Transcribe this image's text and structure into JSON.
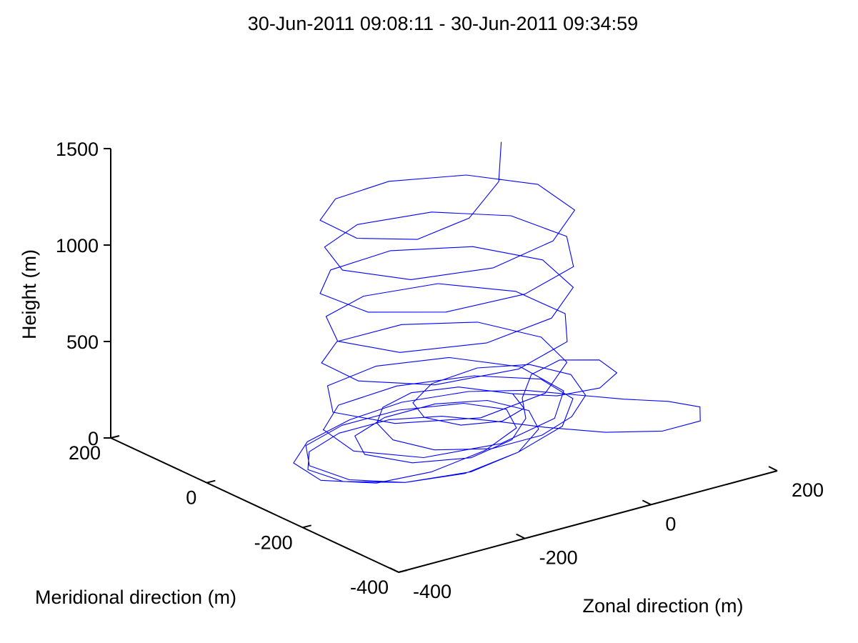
{
  "chart_data": {
    "type": "line3d",
    "title": "30-Jun-2011 09:08:11 - 30-Jun-2011 09:34:59",
    "xlabel": "Zonal direction (m)",
    "ylabel": "Meridional direction (m)",
    "zlabel": "Height (m)",
    "xlim": [
      -400,
      200
    ],
    "ylim": [
      -400,
      200
    ],
    "zlim": [
      0,
      1500
    ],
    "x_ticks": [
      "-400",
      "-200",
      "0",
      "200"
    ],
    "y_ticks": [
      "-400",
      "-200",
      "0",
      "200"
    ],
    "z_ticks": [
      "0",
      "500",
      "1000",
      "1500"
    ],
    "grid": false,
    "series_color": "#0000ff",
    "series": [
      {
        "description": "spiral descent path",
        "points": [
          [
            120,
            70,
            1230
          ],
          [
            40,
            -30,
            1210
          ],
          [
            -60,
            -100,
            1190
          ],
          [
            -150,
            -110,
            1170
          ],
          [
            -200,
            -50,
            1150
          ],
          [
            -190,
            40,
            1130
          ],
          [
            -120,
            100,
            1110
          ],
          [
            -20,
            120,
            1090
          ],
          [
            80,
            90,
            1070
          ],
          [
            140,
            20,
            1050
          ],
          [
            130,
            -70,
            1030
          ],
          [
            50,
            -130,
            1010
          ],
          [
            -60,
            -150,
            990
          ],
          [
            -160,
            -110,
            970
          ],
          [
            -200,
            -20,
            950
          ],
          [
            -160,
            70,
            930
          ],
          [
            -70,
            120,
            910
          ],
          [
            40,
            110,
            890
          ],
          [
            120,
            50,
            870
          ],
          [
            140,
            -40,
            850
          ],
          [
            90,
            -120,
            830
          ],
          [
            -10,
            -150,
            810
          ],
          [
            -120,
            -130,
            790
          ],
          [
            -190,
            -60,
            770
          ],
          [
            -190,
            40,
            750
          ],
          [
            -120,
            110,
            730
          ],
          [
            -10,
            130,
            710
          ],
          [
            90,
            90,
            690
          ],
          [
            140,
            10,
            670
          ],
          [
            120,
            -80,
            650
          ],
          [
            40,
            -140,
            630
          ],
          [
            -70,
            -150,
            610
          ],
          [
            -170,
            -100,
            590
          ],
          [
            -200,
            -10,
            570
          ],
          [
            -150,
            80,
            550
          ],
          [
            -60,
            120,
            530
          ],
          [
            50,
            110,
            510
          ],
          [
            120,
            40,
            490
          ],
          [
            130,
            -50,
            470
          ],
          [
            80,
            -120,
            450
          ],
          [
            -20,
            -150,
            430
          ],
          [
            -130,
            -120,
            410
          ],
          [
            -190,
            -40,
            390
          ],
          [
            -180,
            50,
            370
          ],
          [
            -110,
            110,
            350
          ],
          [
            0,
            120,
            330
          ],
          [
            90,
            80,
            310
          ],
          [
            130,
            0,
            290
          ],
          [
            110,
            -80,
            270
          ],
          [
            30,
            -140,
            250
          ],
          [
            -80,
            -150,
            230
          ],
          [
            -170,
            -90,
            210
          ],
          [
            -200,
            0,
            190
          ],
          [
            -140,
            90,
            170
          ],
          [
            -40,
            120,
            150
          ],
          [
            60,
            100,
            130
          ],
          [
            120,
            30,
            110
          ],
          [
            120,
            -60,
            90
          ],
          [
            60,
            -120,
            70
          ],
          [
            -40,
            -140,
            50
          ],
          [
            -140,
            -110,
            30
          ],
          [
            -190,
            -30,
            15
          ],
          [
            -170,
            60,
            5
          ]
        ]
      },
      {
        "description": "low-level loops near ground",
        "points": [
          [
            -170,
            60,
            0
          ],
          [
            -100,
            120,
            0
          ],
          [
            0,
            130,
            0
          ],
          [
            100,
            100,
            0
          ],
          [
            160,
            40,
            0
          ],
          [
            150,
            -40,
            0
          ],
          [
            80,
            -110,
            0
          ],
          [
            -20,
            -150,
            0
          ],
          [
            -120,
            -170,
            0
          ],
          [
            -200,
            -150,
            0
          ],
          [
            -250,
            -100,
            0
          ],
          [
            -260,
            -30,
            0
          ],
          [
            -220,
            30,
            0
          ],
          [
            -140,
            60,
            0
          ],
          [
            -50,
            60,
            0
          ],
          [
            30,
            30,
            0
          ],
          [
            60,
            -20,
            0
          ],
          [
            30,
            -80,
            0
          ],
          [
            -50,
            -120,
            0
          ],
          [
            -150,
            -140,
            0
          ],
          [
            -230,
            -130,
            0
          ],
          [
            -280,
            -80,
            0
          ],
          [
            -270,
            -10,
            0
          ],
          [
            -210,
            40,
            0
          ],
          [
            -120,
            70,
            0
          ],
          [
            -30,
            80,
            0
          ],
          [
            60,
            60,
            0
          ],
          [
            120,
            20,
            0
          ],
          [
            160,
            -30,
            0
          ],
          [
            200,
            -80,
            0
          ],
          [
            240,
            -120,
            0
          ],
          [
            260,
            -160,
            0
          ],
          [
            230,
            -200,
            0
          ],
          [
            170,
            -200,
            0
          ],
          [
            110,
            -160,
            0
          ],
          [
            60,
            -100,
            0
          ],
          [
            20,
            -40,
            0
          ],
          [
            -20,
            10,
            0
          ],
          [
            -80,
            40,
            0
          ],
          [
            -160,
            40,
            0
          ],
          [
            -230,
            10,
            0
          ],
          [
            -270,
            -40,
            0
          ],
          [
            -260,
            -100,
            0
          ],
          [
            -200,
            -150,
            0
          ],
          [
            -110,
            -170,
            0
          ],
          [
            -20,
            -150,
            0
          ],
          [
            50,
            -100,
            0
          ],
          [
            80,
            -40,
            0
          ],
          [
            60,
            20,
            0
          ],
          [
            0,
            50,
            0
          ],
          [
            -80,
            50,
            0
          ],
          [
            -150,
            20,
            0
          ],
          [
            -180,
            -40,
            0
          ],
          [
            -150,
            -100,
            0
          ],
          [
            -80,
            -130,
            0
          ],
          [
            0,
            -110,
            0
          ],
          [
            60,
            -60,
            0
          ],
          [
            100,
            0,
            0
          ],
          [
            160,
            60,
            0
          ],
          [
            220,
            80,
            0
          ],
          [
            260,
            50,
            0
          ],
          [
            250,
            0,
            0
          ],
          [
            200,
            -30,
            0
          ],
          [
            140,
            -20,
            0
          ],
          [
            100,
            20,
            0
          ],
          [
            60,
            80,
            0
          ],
          [
            0,
            100,
            0
          ],
          [
            -60,
            80,
            0
          ],
          [
            -100,
            40,
            0
          ],
          [
            -120,
            -20,
            0
          ],
          [
            -100,
            -80,
            0
          ],
          [
            -40,
            -120,
            0
          ],
          [
            40,
            -120,
            0
          ],
          [
            110,
            -90,
            0
          ],
          [
            170,
            -40,
            0
          ],
          [
            200,
            30,
            0
          ],
          [
            180,
            90,
            0
          ],
          [
            120,
            120,
            0
          ],
          [
            40,
            110,
            0
          ],
          [
            -20,
            70,
            0
          ],
          [
            -40,
            20,
            0
          ],
          [
            -20,
            -30,
            0
          ],
          [
            30,
            -50,
            0
          ],
          [
            80,
            -30,
            0
          ],
          [
            100,
            20,
            0
          ]
        ]
      }
    ]
  }
}
